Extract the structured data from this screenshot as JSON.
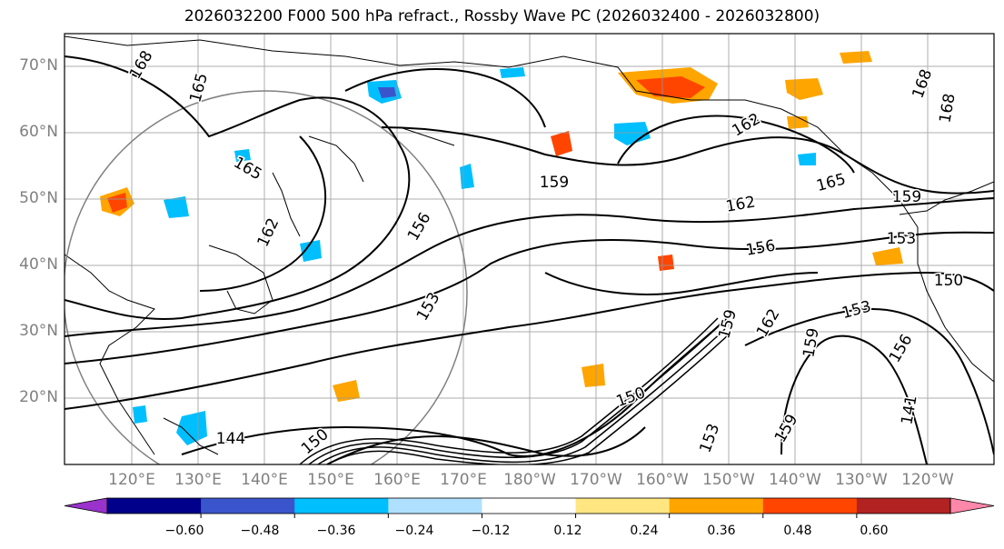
{
  "title": "2026032200 F000 500 hPa refract., Rossby Wave PC (2026032400 - 2026032800)",
  "lat_labels": [
    "70°N",
    "60°N",
    "50°N",
    "40°N",
    "30°N",
    "20°N"
  ],
  "lon_labels": [
    "120°E",
    "130°E",
    "140°E",
    "150°E",
    "160°E",
    "170°E",
    "180°W",
    "170°W",
    "160°W",
    "150°W",
    "140°W",
    "130°W",
    "120°W"
  ],
  "contour_labels": [
    "168",
    "165",
    "165",
    "159",
    "162",
    "165",
    "162",
    "156",
    "156",
    "153",
    "153",
    "150",
    "150",
    "159",
    "162",
    "153",
    "156",
    "159",
    "144",
    "153",
    "159",
    "150",
    "141",
    "168",
    "159",
    "168",
    "162"
  ],
  "colorbar": {
    "ticks": [
      "−0.60",
      "−0.48",
      "−0.36",
      "−0.24",
      "−0.12",
      "0.12",
      "0.24",
      "0.36",
      "0.48",
      "0.60"
    ],
    "colors": [
      "#9933cc",
      "#00008b",
      "#3a55cc",
      "#00bfff",
      "#b0e0ff",
      "#ffffff",
      "#ffe680",
      "#ffa500",
      "#ff4500",
      "#b22222",
      "#ff88aa"
    ]
  },
  "shading_colors": {
    "pos_weak": "#ffe680",
    "pos_mid": "#ffa500",
    "pos_strong": "#ff4500",
    "neg_weak": "#b0e0ff",
    "neg_mid": "#00bfff",
    "neg_strong": "#3a55cc",
    "neg_max": "#00008b"
  }
}
